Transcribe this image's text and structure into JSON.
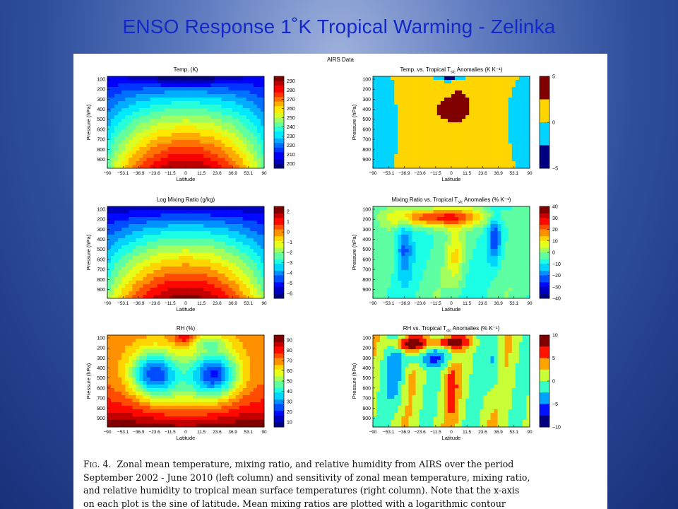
{
  "slide": {
    "title": "ENSO Response 1˚K Tropical Warming - Zelinka"
  },
  "figure": {
    "header": "AIRS Data",
    "caption_lead": "Fig. 4.",
    "caption_lines": [
      "Zonal mean temperature, mixing ratio, and relative humidity from AIRS over the period",
      "September 2002 - June 2010 (left column) and sensitivity of zonal mean temperature, mixing ratio,",
      "and relative humidity to tropical mean surface temperatures (right column). Note that the x-axis",
      "on each plot is the sine of latitude. Mean mixing ratios are plotted with a logarithmic contour"
    ]
  },
  "chart_data": [
    {
      "id": "temp",
      "type": "heatmap",
      "title": "Temp. (K)",
      "xlabel": "Latitude",
      "ylabel": "Pressure (hPa)",
      "xticks": [
        "−90",
        "−53.1",
        "−36.9",
        "−23.6",
        "−11.5",
        "0",
        "11.5",
        "23.6",
        "36.9",
        "53.1",
        "90"
      ],
      "yticks": [
        "100",
        "200",
        "300",
        "400",
        "500",
        "600",
        "700",
        "800",
        "900"
      ],
      "colorbar": {
        "ticks": [
          "290",
          "280",
          "270",
          "260",
          "250",
          "240",
          "230",
          "220",
          "210",
          "200"
        ],
        "range": [
          195,
          295
        ]
      }
    },
    {
      "id": "temp-anom",
      "type": "heatmap",
      "title": "Temp. vs. Tropical T",
      "title_sub": "sfc",
      "title_suffix": " Anomalies (K K⁻¹)",
      "xlabel": "Latitude",
      "ylabel": "Pressure (hPa)",
      "xticks": [
        "−90",
        "−53.1",
        "−36.9",
        "−23.6",
        "−11.5",
        "0",
        "11.5",
        "23.6",
        "36.9",
        "53.1",
        "90"
      ],
      "yticks": [
        "100",
        "200",
        "300",
        "400",
        "500",
        "600",
        "700",
        "800",
        "900"
      ],
      "colorbar": {
        "ticks": [
          "5",
          "0",
          "−5"
        ],
        "range": [
          -5,
          5
        ]
      }
    },
    {
      "id": "mixing",
      "type": "heatmap",
      "title": "Log Mixing Ratio (g/kg)",
      "xlabel": "Latitude",
      "ylabel": "Pressure (hPa)",
      "xticks": [
        "−90",
        "−53.1",
        "−36.9",
        "−23.6",
        "−11.5",
        "0",
        "11.5",
        "23.6",
        "36.9",
        "53.1",
        "90"
      ],
      "yticks": [
        "100",
        "200",
        "300",
        "400",
        "500",
        "600",
        "700",
        "800",
        "900"
      ],
      "colorbar": {
        "ticks": [
          "2",
          "1",
          "0",
          "−1",
          "−2",
          "−3",
          "−4",
          "−5",
          "−6"
        ],
        "range": [
          -6.5,
          2.5
        ]
      }
    },
    {
      "id": "mixing-anom",
      "type": "heatmap",
      "title": "Mixing Ratio vs. Tropical T",
      "title_sub": "sfc",
      "title_suffix": " Anomalies (% K⁻¹)",
      "xlabel": "Latitude",
      "ylabel": "Pressure (hPa)",
      "xticks": [
        "−90",
        "−53.1",
        "−36.9",
        "−23.6",
        "−11.5",
        "0",
        "11.5",
        "23.6",
        "36.9",
        "53.1",
        "90"
      ],
      "yticks": [
        "100",
        "200",
        "300",
        "400",
        "500",
        "600",
        "700",
        "800",
        "900"
      ],
      "colorbar": {
        "ticks": [
          "40",
          "30",
          "20",
          "10",
          "0",
          "−10",
          "−20",
          "−30",
          "−40"
        ],
        "range": [
          -40,
          40
        ]
      }
    },
    {
      "id": "rh",
      "type": "heatmap",
      "title": "RH (%)",
      "xlabel": "Latitude",
      "ylabel": "Pressure (hPa)",
      "xticks": [
        "−90",
        "−53.1",
        "−36.9",
        "−23.6",
        "−11.5",
        "0",
        "11.5",
        "23.6",
        "36.9",
        "53.1",
        "90"
      ],
      "yticks": [
        "100",
        "200",
        "300",
        "400",
        "500",
        "600",
        "700",
        "800",
        "900"
      ],
      "colorbar": {
        "ticks": [
          "90",
          "80",
          "70",
          "60",
          "50",
          "40",
          "30",
          "20",
          "10"
        ],
        "range": [
          5,
          95
        ]
      }
    },
    {
      "id": "rh-anom",
      "type": "heatmap",
      "title": "RH vs. Tropical T",
      "title_sub": "sfc",
      "title_suffix": " Anomalies (% K⁻¹)",
      "xlabel": "Latitude",
      "ylabel": "Pressure (hPa)",
      "xticks": [
        "−90",
        "−53.1",
        "−36.9",
        "−23.6",
        "−11.5",
        "0",
        "11.5",
        "23.6",
        "36.9",
        "53.1",
        "90"
      ],
      "yticks": [
        "100",
        "200",
        "300",
        "400",
        "500",
        "600",
        "700",
        "800",
        "900"
      ],
      "colorbar": {
        "ticks": [
          "10",
          "5",
          "0",
          "−5",
          "−10"
        ],
        "range": [
          -10,
          10
        ]
      }
    }
  ]
}
